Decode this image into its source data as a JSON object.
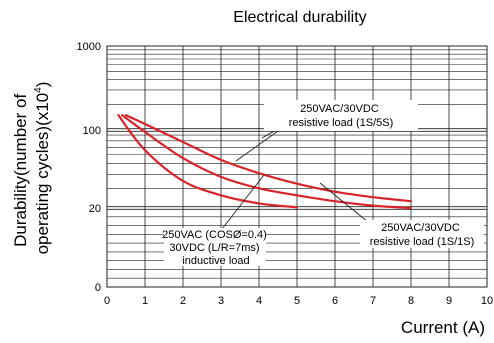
{
  "chart_data": {
    "type": "line",
    "title": "Electrical durability",
    "xlabel": "Current (A)",
    "ylabel_lines": [
      "Durability(number of",
      "operating cycles)(x10"
    ],
    "ylabel_exponent": "4",
    "ylabel_suffix": ")",
    "xlim": [
      0,
      10
    ],
    "x_ticks": [
      "0",
      "1",
      "2",
      "3",
      "4",
      "5",
      "6",
      "7",
      "8",
      "9",
      "10"
    ],
    "y_scale": "log",
    "y_ticks": [
      {
        "label": "0",
        "value": 1
      },
      {
        "label": "20",
        "value": 20
      },
      {
        "label": "100",
        "value": 100
      },
      {
        "label": "1000",
        "value": 1000
      }
    ],
    "grid": true,
    "line_color": "#d8232a",
    "series": [
      {
        "x": [
          0.5,
          1,
          2,
          3,
          4,
          5,
          6,
          7,
          8
        ],
        "y": [
          150,
          118,
          78,
          54,
          41,
          33,
          28,
          25,
          23
        ]
      },
      {
        "x": [
          0.4,
          1,
          2,
          3,
          4,
          5,
          6,
          7,
          8
        ],
        "y": [
          150,
          96,
          56,
          38,
          30,
          26,
          23,
          21,
          20
        ]
      },
      {
        "x": [
          0.3,
          1,
          2,
          3,
          4,
          5
        ],
        "y": [
          150,
          66,
          35,
          26,
          22,
          20.3
        ]
      }
    ],
    "annotations": [
      {
        "lines": [
          "250VAC/30VDC",
          "resistive load (1S/5S)"
        ]
      },
      {
        "lines": [
          "250VAC (COSØ=0.4)",
          "30VDC (L/R=7ms)",
          "inductive load"
        ]
      },
      {
        "lines": [
          "250VAC/30VDC",
          "resistive load (1S/1S)"
        ]
      }
    ]
  }
}
